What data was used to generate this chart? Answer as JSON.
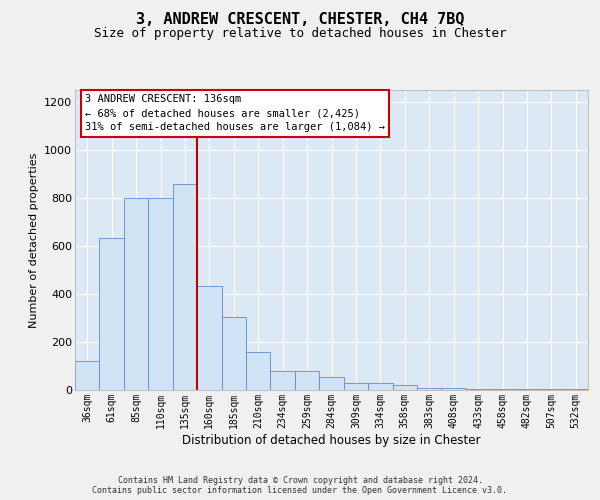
{
  "title": "3, ANDREW CRESCENT, CHESTER, CH4 7BQ",
  "subtitle": "Size of property relative to detached houses in Chester",
  "xlabel": "Distribution of detached houses by size in Chester",
  "ylabel": "Number of detached properties",
  "footer_line1": "Contains HM Land Registry data © Crown copyright and database right 2024.",
  "footer_line2": "Contains public sector information licensed under the Open Government Licence v3.0.",
  "annotation_line1": "3 ANDREW CRESCENT: 136sqm",
  "annotation_line2": "← 68% of detached houses are smaller (2,425)",
  "annotation_line3": "31% of semi-detached houses are larger (1,084) →",
  "bar_categories": [
    "36sqm",
    "61sqm",
    "85sqm",
    "110sqm",
    "135sqm",
    "160sqm",
    "185sqm",
    "210sqm",
    "234sqm",
    "259sqm",
    "284sqm",
    "309sqm",
    "334sqm",
    "358sqm",
    "383sqm",
    "408sqm",
    "433sqm",
    "458sqm",
    "482sqm",
    "507sqm",
    "532sqm"
  ],
  "bar_values": [
    120,
    635,
    800,
    800,
    860,
    435,
    305,
    160,
    80,
    80,
    55,
    30,
    30,
    20,
    10,
    10,
    5,
    5,
    5,
    5,
    5
  ],
  "bar_color": "#d0e4f5",
  "bar_edge_color": "#5b8dc8",
  "vline_color": "#bb0000",
  "vline_x": 4.5,
  "ylim_max": 1250,
  "yticks": [
    0,
    200,
    400,
    600,
    800,
    1000,
    1200
  ],
  "bg_axes": "#dde8f5",
  "bg_fig": "#f0f0f0",
  "grid_color": "#ffffff",
  "ann_bg": "#ffffff",
  "ann_border": "#cc0000"
}
